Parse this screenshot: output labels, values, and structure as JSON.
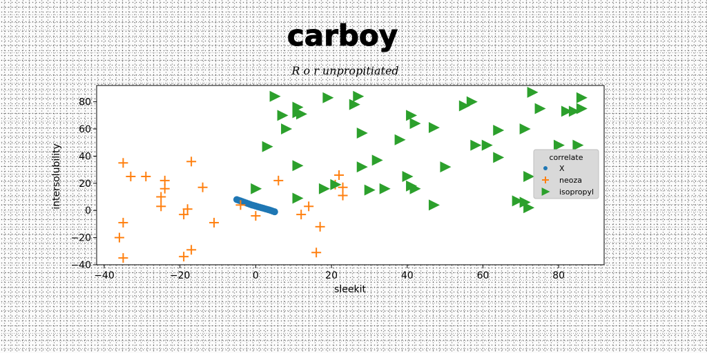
{
  "chart_data": {
    "type": "scatter",
    "title": "carboy",
    "subtitle": "R o r unpropitiated",
    "xlabel": "sleekit",
    "ylabel": "intersolubility",
    "xlim": [
      -42,
      92
    ],
    "ylim": [
      -40,
      92
    ],
    "xticks": [
      -40,
      -20,
      0,
      20,
      40,
      60,
      80
    ],
    "yticks": [
      -40,
      -20,
      0,
      20,
      40,
      60,
      80
    ],
    "grid": false,
    "legend": {
      "title": "correlate",
      "placement": "right"
    },
    "series": [
      {
        "name": "X",
        "marker": "circle",
        "color": "#1f77b4",
        "points": [
          [
            -5,
            8
          ],
          [
            -4.5,
            7.5
          ],
          [
            -4,
            7
          ],
          [
            -3.5,
            6.5
          ],
          [
            -3,
            6
          ],
          [
            -2.5,
            5.5
          ],
          [
            -2,
            5
          ],
          [
            -1.5,
            4.5
          ],
          [
            -1,
            4
          ],
          [
            -0.5,
            3.6
          ],
          [
            0,
            3.2
          ],
          [
            0.5,
            2.8
          ],
          [
            1,
            2.4
          ],
          [
            1.5,
            2
          ],
          [
            2,
            1.6
          ],
          [
            2.5,
            1.2
          ],
          [
            3,
            0.8
          ],
          [
            3.5,
            0.4
          ],
          [
            4,
            0
          ],
          [
            4.5,
            -0.5
          ],
          [
            5,
            -1
          ]
        ]
      },
      {
        "name": "neoza",
        "marker": "plus",
        "color": "#ff7f0e",
        "points": [
          [
            -35,
            35
          ],
          [
            -33,
            25
          ],
          [
            -29,
            25
          ],
          [
            -24,
            22
          ],
          [
            -24,
            16
          ],
          [
            -25,
            10
          ],
          [
            -25,
            3
          ],
          [
            -19,
            -3
          ],
          [
            -18,
            1
          ],
          [
            -17,
            36
          ],
          [
            -14,
            17
          ],
          [
            -11,
            -9
          ],
          [
            -35,
            -9
          ],
          [
            -36,
            -20
          ],
          [
            -35,
            -35
          ],
          [
            -19,
            -34
          ],
          [
            -17,
            -29
          ],
          [
            -4,
            4
          ],
          [
            0,
            -4
          ],
          [
            6,
            22
          ],
          [
            12,
            -3
          ],
          [
            14,
            3
          ],
          [
            17,
            -12
          ],
          [
            16,
            -31
          ],
          [
            21,
            19
          ],
          [
            22,
            26
          ],
          [
            23,
            17
          ],
          [
            23,
            11
          ]
        ]
      },
      {
        "name": "isopropyl",
        "marker": "triangle-right",
        "color": "#2ca02c",
        "points": [
          [
            3,
            47
          ],
          [
            5,
            84
          ],
          [
            7,
            70
          ],
          [
            8,
            60
          ],
          [
            11,
            72
          ],
          [
            11,
            76
          ],
          [
            12,
            71
          ],
          [
            11,
            33
          ],
          [
            11,
            9
          ],
          [
            0,
            16
          ],
          [
            19,
            83
          ],
          [
            18,
            16
          ],
          [
            21,
            19
          ],
          [
            27,
            84
          ],
          [
            26,
            78
          ],
          [
            28,
            57
          ],
          [
            28,
            32
          ],
          [
            30,
            15
          ],
          [
            32,
            37
          ],
          [
            34,
            16
          ],
          [
            38,
            52
          ],
          [
            40,
            25
          ],
          [
            41,
            70
          ],
          [
            42,
            64
          ],
          [
            41,
            18
          ],
          [
            42,
            16
          ],
          [
            47,
            61
          ],
          [
            47,
            4
          ],
          [
            50,
            32
          ],
          [
            55,
            77
          ],
          [
            57,
            80
          ],
          [
            58,
            48
          ],
          [
            61,
            48
          ],
          [
            64,
            59
          ],
          [
            64,
            39
          ],
          [
            71,
            60
          ],
          [
            72,
            25
          ],
          [
            69,
            7
          ],
          [
            71,
            6
          ],
          [
            72,
            2
          ],
          [
            73,
            87
          ],
          [
            75,
            75
          ],
          [
            82,
            73
          ],
          [
            84,
            73
          ],
          [
            86,
            83
          ],
          [
            86,
            75
          ],
          [
            80,
            48
          ],
          [
            85,
            48
          ]
        ]
      }
    ]
  }
}
